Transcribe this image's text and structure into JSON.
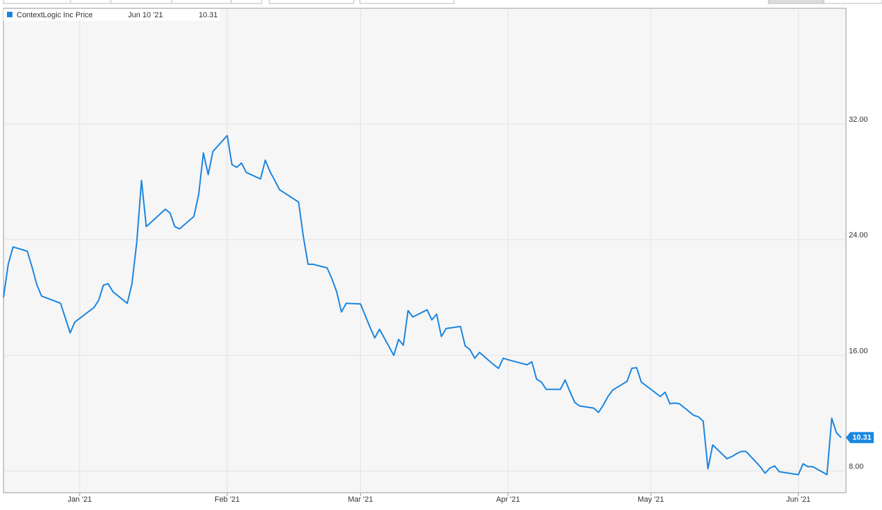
{
  "chart_data": {
    "type": "line",
    "series": [
      {
        "name": "ContextLogic Inc Price",
        "color": "#1a85e0",
        "values": [
          20.0,
          22.3,
          23.5,
          23.2,
          22.1,
          20.9,
          20.1,
          19.6,
          17.55,
          18.3,
          19.3,
          19.8,
          20.85,
          20.95,
          20.4,
          19.6,
          20.95,
          23.8,
          28.1,
          24.9,
          26.1,
          25.85,
          24.9,
          24.75,
          25.6,
          27.1,
          30.0,
          28.5,
          30.1,
          31.2,
          29.2,
          29.0,
          29.3,
          28.65,
          28.2,
          29.5,
          28.7,
          28.1,
          27.45,
          26.6,
          24.2,
          22.3,
          22.3,
          22.05,
          21.3,
          20.4,
          19.0,
          19.6,
          19.55,
          18.75,
          17.95,
          17.2,
          17.8,
          16.0,
          17.1,
          16.7,
          19.1,
          18.65,
          19.15,
          18.45,
          18.85,
          17.3,
          17.85,
          18.0,
          16.65,
          16.4,
          15.8,
          16.2,
          15.35,
          15.1,
          15.8,
          15.7,
          15.35,
          15.55,
          14.35,
          14.15,
          13.65,
          13.65,
          14.3,
          13.5,
          12.75,
          12.5,
          12.35,
          12.05,
          12.55,
          13.15,
          13.6,
          14.2,
          15.1,
          15.15,
          14.15,
          13.15,
          13.45,
          12.65,
          12.7,
          12.65,
          11.85,
          11.75,
          11.45,
          8.15,
          9.8,
          8.85,
          9.0,
          9.2,
          9.35,
          9.35,
          8.3,
          7.85,
          8.2,
          8.35,
          7.95,
          7.75,
          8.5,
          8.3,
          8.3,
          7.75,
          11.65,
          10.65,
          10.31
        ]
      }
    ],
    "x": [
      "2020-12-16",
      "2020-12-17",
      "2020-12-18",
      "2020-12-21",
      "2020-12-22",
      "2020-12-23",
      "2020-12-24",
      "2020-12-28",
      "2020-12-30",
      "2020-12-31",
      "2021-01-04",
      "2021-01-05",
      "2021-01-06",
      "2021-01-07",
      "2021-01-08",
      "2021-01-11",
      "2021-01-12",
      "2021-01-13",
      "2021-01-14",
      "2021-01-15",
      "2021-01-19",
      "2021-01-20",
      "2021-01-21",
      "2021-01-22",
      "2021-01-25",
      "2021-01-26",
      "2021-01-27",
      "2021-01-28",
      "2021-01-29",
      "2021-02-01",
      "2021-02-02",
      "2021-02-03",
      "2021-02-04",
      "2021-02-05",
      "2021-02-08",
      "2021-02-09",
      "2021-02-10",
      "2021-02-11",
      "2021-02-12",
      "2021-02-16",
      "2021-02-17",
      "2021-02-18",
      "2021-02-19",
      "2021-02-22",
      "2021-02-23",
      "2021-02-24",
      "2021-02-25",
      "2021-02-26",
      "2021-03-01",
      "2021-03-02",
      "2021-03-03",
      "2021-03-04",
      "2021-03-05",
      "2021-03-08",
      "2021-03-09",
      "2021-03-10",
      "2021-03-11",
      "2021-03-12",
      "2021-03-15",
      "2021-03-16",
      "2021-03-17",
      "2021-03-18",
      "2021-03-19",
      "2021-03-22",
      "2021-03-23",
      "2021-03-24",
      "2021-03-25",
      "2021-03-26",
      "2021-03-29",
      "2021-03-30",
      "2021-03-31",
      "2021-04-01",
      "2021-04-05",
      "2021-04-06",
      "2021-04-07",
      "2021-04-08",
      "2021-04-09",
      "2021-04-12",
      "2021-04-13",
      "2021-04-14",
      "2021-04-15",
      "2021-04-16",
      "2021-04-19",
      "2021-04-20",
      "2021-04-21",
      "2021-04-22",
      "2021-04-23",
      "2021-04-26",
      "2021-04-27",
      "2021-04-28",
      "2021-04-29",
      "2021-05-03",
      "2021-05-04",
      "2021-05-05",
      "2021-05-06",
      "2021-05-07",
      "2021-05-10",
      "2021-05-11",
      "2021-05-12",
      "2021-05-13",
      "2021-05-14",
      "2021-05-17",
      "2021-05-18",
      "2021-05-19",
      "2021-05-20",
      "2021-05-21",
      "2021-05-24",
      "2021-05-25",
      "2021-05-26",
      "2021-05-27",
      "2021-05-28",
      "2021-06-01",
      "2021-06-02",
      "2021-06-03",
      "2021-06-04",
      "2021-06-07",
      "2021-06-08",
      "2021-06-09",
      "2021-06-10"
    ],
    "xlim": [
      "2020-12-16",
      "2021-06-11"
    ],
    "xticks": [
      {
        "value": "2021-01-01",
        "label": "Jan '21"
      },
      {
        "value": "2021-02-01",
        "label": "Feb '21"
      },
      {
        "value": "2021-03-01",
        "label": "Mar '21"
      },
      {
        "value": "2021-04-01",
        "label": "Apr '21"
      },
      {
        "value": "2021-05-01",
        "label": "May '21"
      },
      {
        "value": "2021-06-01",
        "label": "Jun '21"
      }
    ],
    "ylim": [
      6.5,
      40
    ],
    "yticks": [
      {
        "value": 8,
        "label": "8.00"
      },
      {
        "value": 16,
        "label": "16.00"
      },
      {
        "value": 24,
        "label": "24.00"
      },
      {
        "value": 32,
        "label": "32.00"
      }
    ],
    "grid": true,
    "legend_date": "Jun 10 '21"
  }
}
